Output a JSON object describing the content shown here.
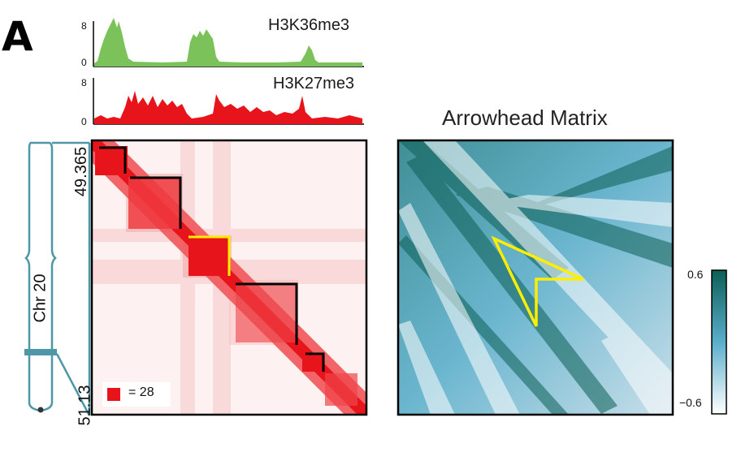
{
  "panel_label": "A",
  "tracks": [
    {
      "name": "H3K36me3",
      "color": "#7bc25a",
      "y_max": "8",
      "y_min": "0"
    },
    {
      "name": "H3K27me3",
      "color": "#e8141c",
      "y_max": "8",
      "y_min": "0"
    }
  ],
  "hic_matrix": {
    "coord_start": "49.365",
    "coord_end": "51.13",
    "legend_value": "= 28",
    "color": "#e8141c",
    "domain_outline_colors": {
      "black": "#000000",
      "highlight": "#ffee00"
    }
  },
  "chromosome": {
    "label": "Chr 20",
    "color": "#4e97a6"
  },
  "arrowhead": {
    "title": "Arrowhead Matrix",
    "colorbar_max": "0.6",
    "colorbar_min": "−0.6",
    "colors": {
      "high": "#0c5f56",
      "mid": "#5aaecb",
      "low": "#ffffff"
    }
  }
}
